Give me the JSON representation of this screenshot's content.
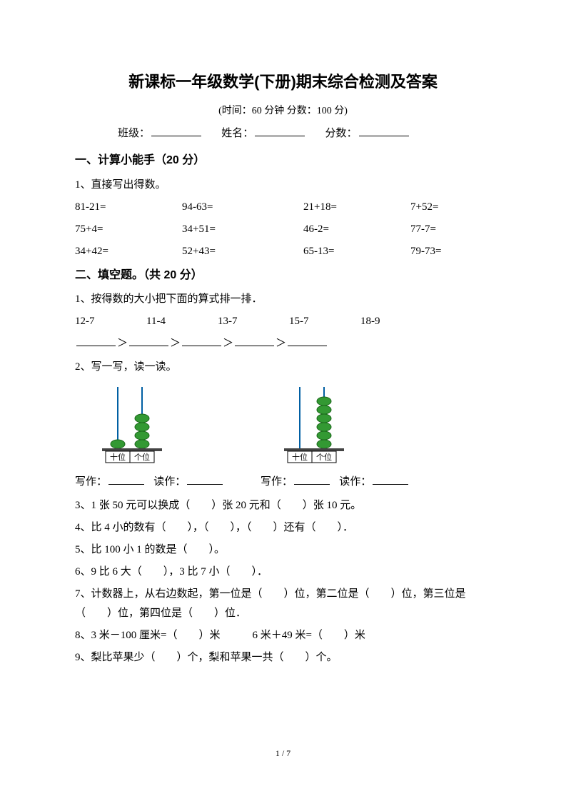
{
  "title": "新课标一年级数学(下册)期末综合检测及答案",
  "subtitle": "(时间：60 分钟     分数：100 分)",
  "info": {
    "class_label": "班级：",
    "name_label": "姓名：",
    "score_label": "分数："
  },
  "s1": {
    "heading": "一、计算小能手（20 分）",
    "q1": "1、直接写出得数。",
    "r1c1": "81-21=",
    "r1c2": "94-63=",
    "r1c3": "21+18=",
    "r1c4": "7+52=",
    "r2c1": "75+4=",
    "r2c2": "34+51=",
    "r2c3": "46-2=",
    "r2c4": "77-7=",
    "r3c1": "34+42=",
    "r3c2": "52+43=",
    "r3c3": "65-13=",
    "r3c4": "79-73="
  },
  "s2": {
    "heading": "二、填空题。（共 20 分）",
    "q1": "1、按得数的大小把下面的算式排一排．",
    "e1": "12-7",
    "e2": "11-4",
    "e3": "13-7",
    "e4": "15-7",
    "e5": "18-9",
    "gt": "＞",
    "q2": "2、写一写，读一读。",
    "abacus1": {
      "tens_beads": 1,
      "ones_beads": 4,
      "tens_label": "十位",
      "ones_label": "个位",
      "bead_fill": "#339933",
      "bead_stroke": "#1a661a",
      "rod_color": "#005fa3",
      "base_color": "#444444"
    },
    "abacus2": {
      "tens_beads": 0,
      "ones_beads": 6,
      "tens_label": "十位",
      "ones_label": "个位",
      "bead_fill": "#339933",
      "bead_stroke": "#1a661a",
      "rod_color": "#005fa3",
      "base_color": "#444444"
    },
    "write_label": "写作：",
    "read_label": "读作：",
    "q3": "3、1 张 50 元可以换成（　　）张 20 元和（　　）张 10 元。",
    "q4": "4、比 4 小的数有（　　），（　　），（　　）还有（　　）．",
    "q5": "5、比 100 小 1 的数是（　　）。",
    "q6": "6、9 比 6 大（　　），3 比 7 小（　　）．",
    "q7": "7、计数器上，从右边数起，第一位是（　　）位，第二位是（　　）位，第三位是（　　）位，第四位是（　　）位．",
    "q8": "8、3 米－100 厘米=（　　）米　　　6 米＋49 米=（　　）米",
    "q9": "9、梨比苹果少（　　）个，梨和苹果一共（　　）个。"
  },
  "page_num": "1 / 7"
}
